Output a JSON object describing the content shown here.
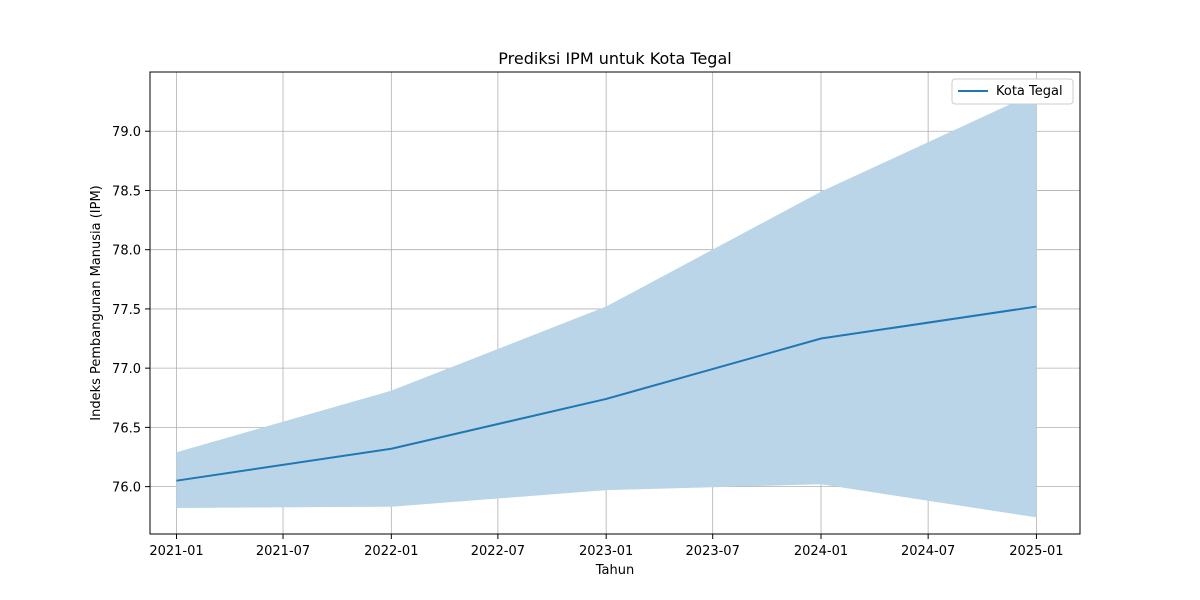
{
  "chart_data": {
    "type": "line",
    "title": "Prediksi IPM untuk Kota Tegal",
    "xlabel": "Tahun",
    "ylabel": "Indeks Pembangunan Manusia (IPM)",
    "x_ticks": [
      "2021-01",
      "2021-07",
      "2022-01",
      "2022-07",
      "2023-01",
      "2023-07",
      "2024-01",
      "2024-07",
      "2025-01"
    ],
    "y_ticks": [
      "76.0",
      "76.5",
      "77.0",
      "77.5",
      "78.0",
      "78.5",
      "79.0"
    ],
    "xlim": [
      "2020-11-17",
      "2025-03-16"
    ],
    "ylim": [
      75.6,
      79.5
    ],
    "grid": true,
    "legend_position": "top-right",
    "series": [
      {
        "name": "Kota Tegal",
        "color": "#1f77b4",
        "x": [
          "2021-01-01",
          "2022-01-01",
          "2023-01-01",
          "2024-01-01",
          "2025-01-01"
        ],
        "values": [
          76.05,
          76.32,
          76.74,
          77.25,
          77.52
        ],
        "lower": [
          75.82,
          75.83,
          75.97,
          76.02,
          75.74
        ],
        "upper": [
          76.29,
          76.81,
          77.52,
          78.49,
          79.33
        ],
        "band_color": "#bad5e8"
      }
    ]
  }
}
